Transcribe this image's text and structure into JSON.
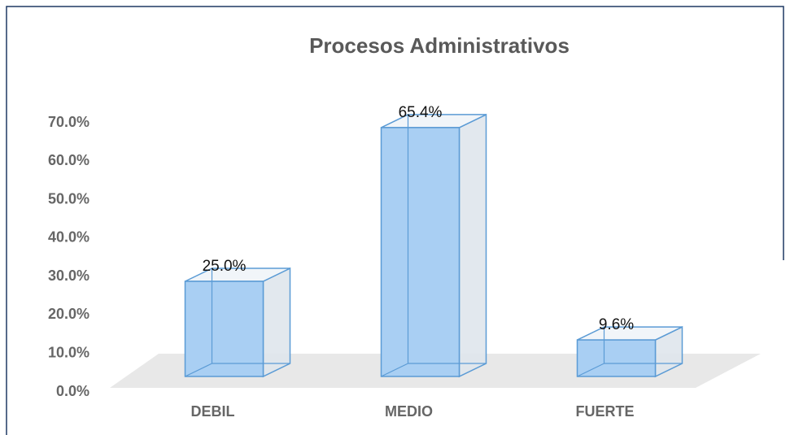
{
  "chart_data": {
    "type": "bar3d",
    "title": "Procesos Administrativos",
    "categories": [
      "DEBIL",
      "MEDIO",
      "FUERTE"
    ],
    "values": [
      25.0,
      65.4,
      9.6
    ],
    "value_labels": [
      "25.0%",
      "65.4%",
      "9.6%"
    ],
    "color": "#a9cff3",
    "ylim": [
      0,
      70
    ],
    "yticks": [
      {
        "value": 0,
        "label": "0.0%"
      },
      {
        "value": 10,
        "label": "10.0%"
      },
      {
        "value": 20,
        "label": "20.0%"
      },
      {
        "value": 30,
        "label": "30.0%"
      },
      {
        "value": 40,
        "label": "40.0%"
      },
      {
        "value": 50,
        "label": "50.0%"
      },
      {
        "value": 60,
        "label": "60.0%"
      },
      {
        "value": 70,
        "label": "70.0%"
      }
    ],
    "grid": false
  }
}
